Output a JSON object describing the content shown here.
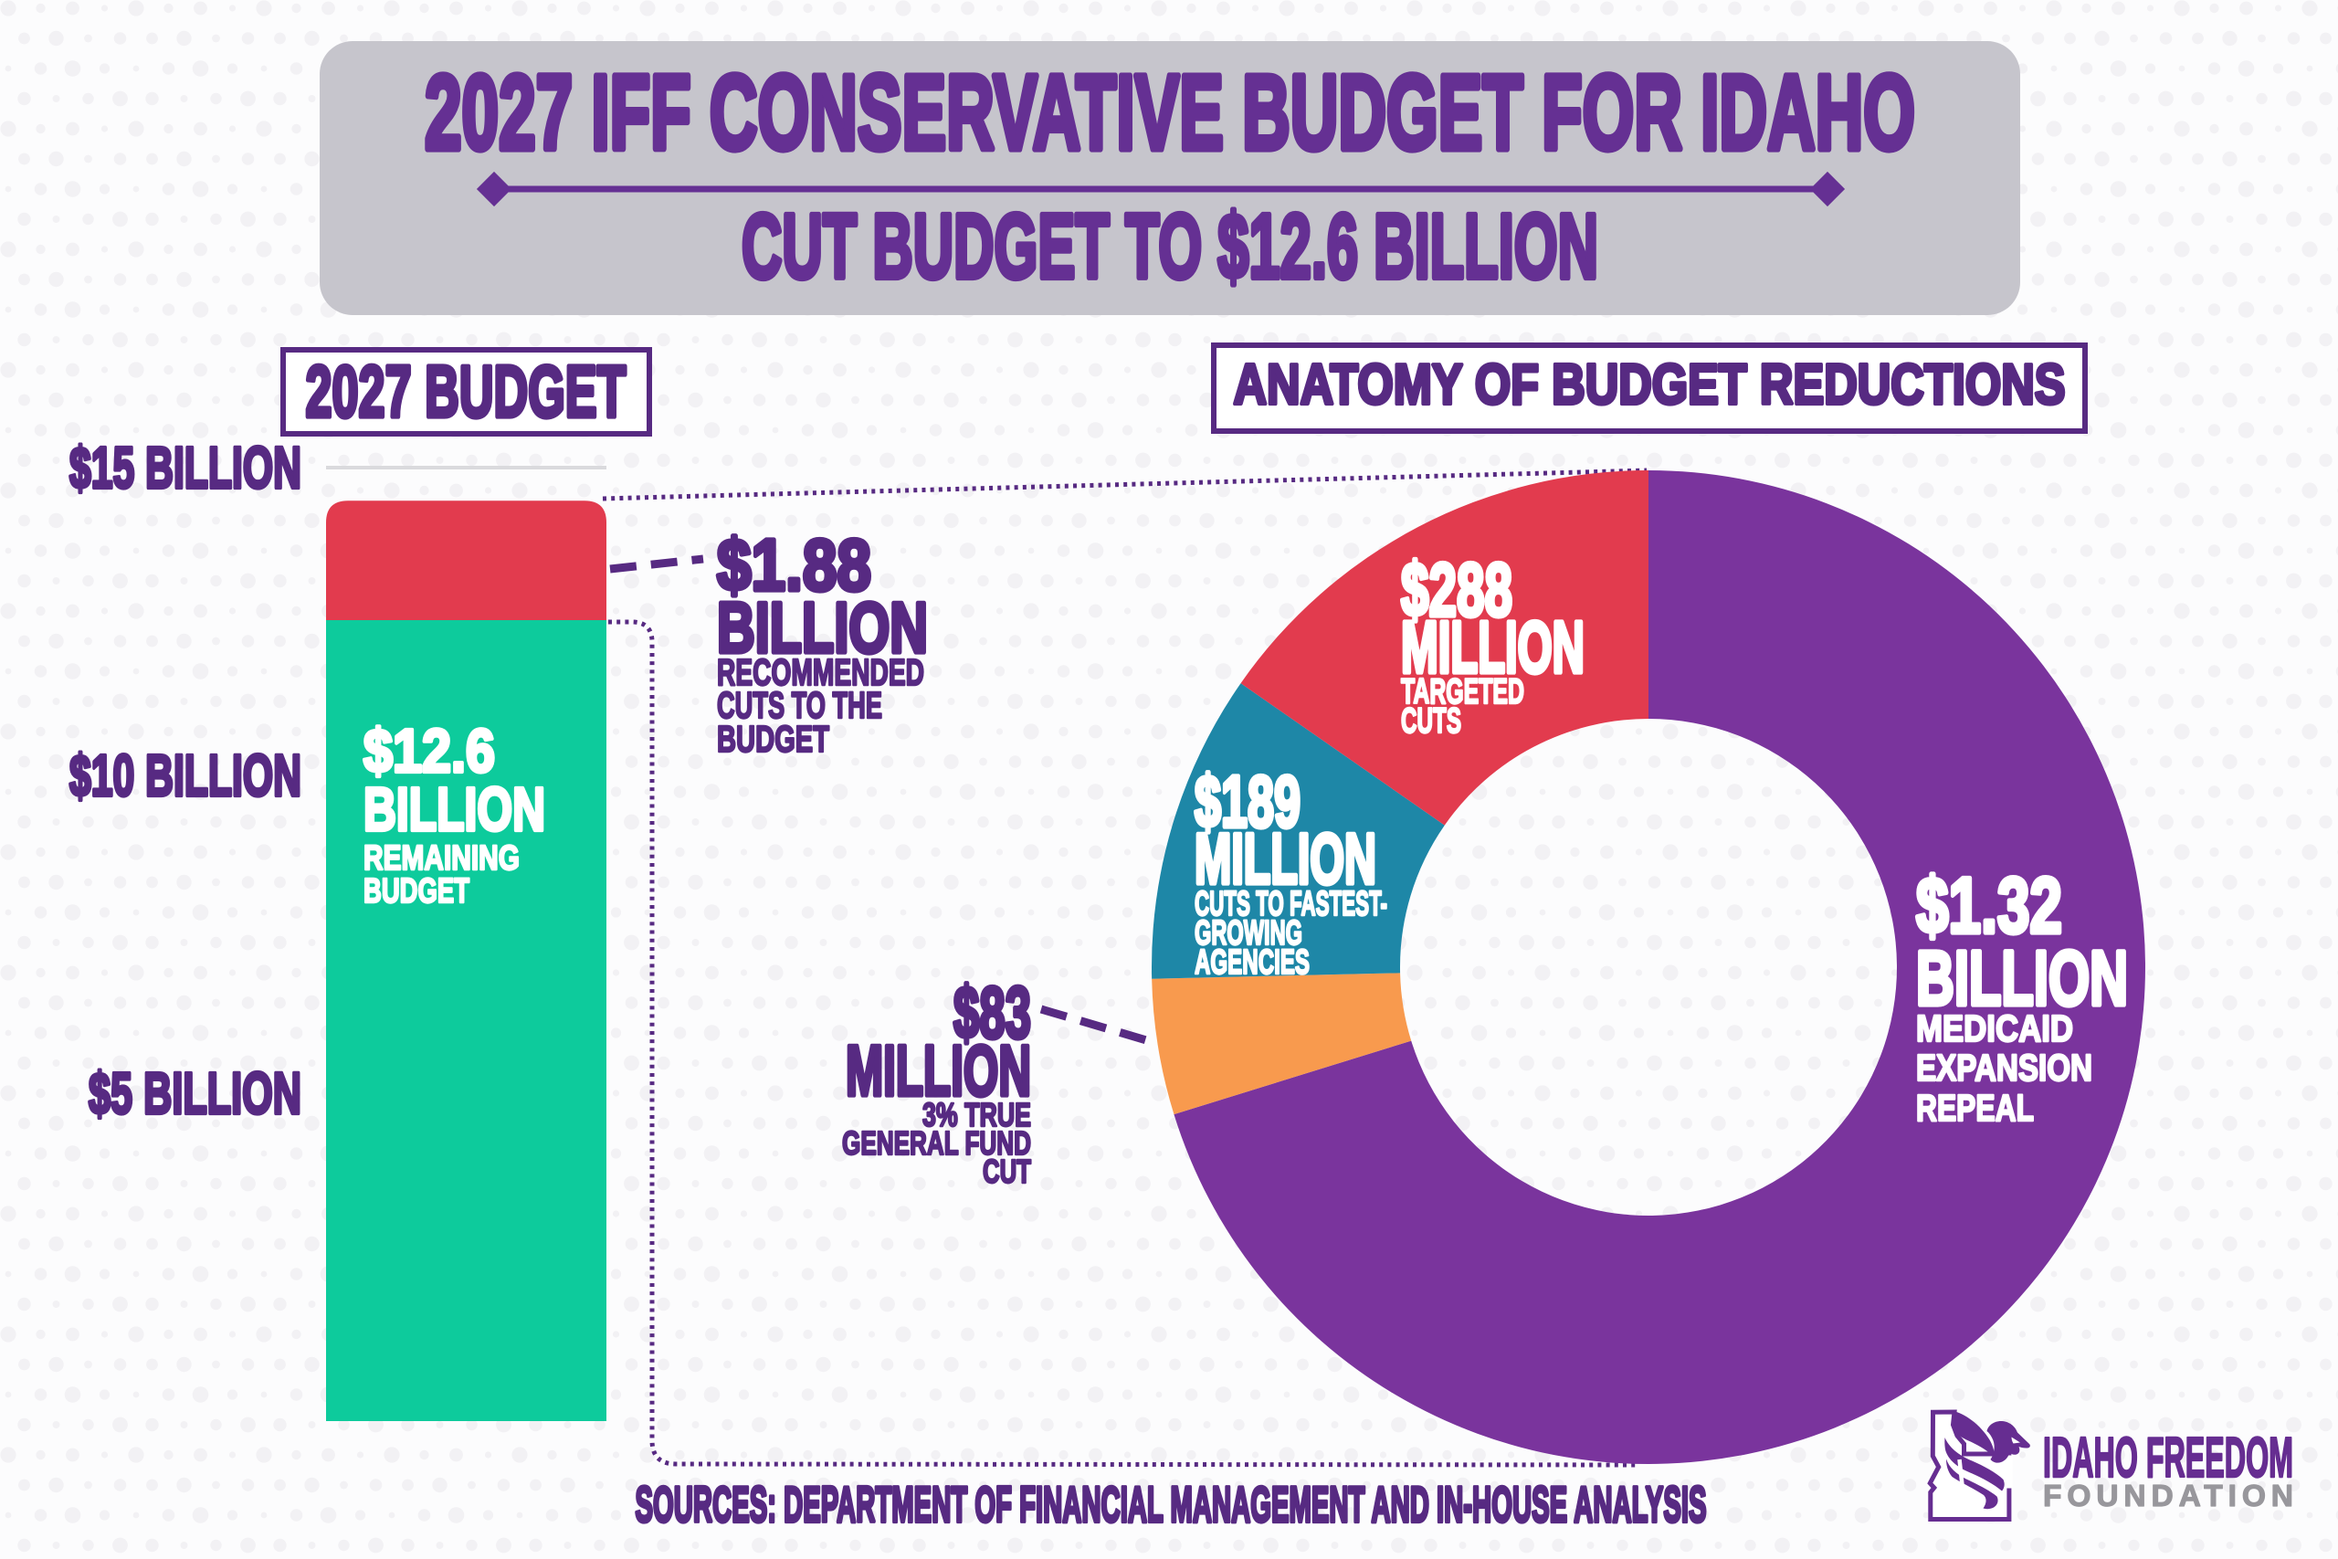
{
  "header": {
    "title": "2027 IFF CONSERVATIVE BUDGET FOR IDAHO",
    "subtitle": "CUT BUDGET TO $12.6 BILLION"
  },
  "bar_chart": {
    "title": "2027 BUDGET",
    "axis_labels": [
      "$15 BILLION",
      "$10 BILLION",
      "$5 BILLION"
    ],
    "bar_label": {
      "amount": "$12.6",
      "unit": "BILLION",
      "desc1": "REMAINING",
      "desc2": "BUDGET"
    }
  },
  "cuts_callout": {
    "amount": "$1.88",
    "unit": "BILLION",
    "desc1": "RECOMMENDED",
    "desc2": "CUTS TO THE",
    "desc3": "BUDGET"
  },
  "donut_chart": {
    "title": "ANATOMY OF BUDGET REDUCTIONS",
    "labels": {
      "targeted": {
        "amount": "$288",
        "unit": "MILLION",
        "desc1": "TARGETED",
        "desc2": "CUTS"
      },
      "fastest": {
        "amount": "$189",
        "unit": "MILLION",
        "desc1": "CUTS TO FASTEST-",
        "desc2": "GROWING",
        "desc3": "AGENCIES"
      },
      "medicaid": {
        "amount": "$1.32",
        "unit": "BILLION",
        "desc1": "MEDICAID",
        "desc2": "EXPANSION",
        "desc3": "REPEAL"
      },
      "generalfund": {
        "amount": "$83",
        "unit": "MILLION",
        "desc1": "3% TRUE",
        "desc2": "GENERAL FUND",
        "desc3": "CUT"
      }
    }
  },
  "sources": "SOURCES: DEPARTMENT OF FINANCIAL MANAGEMENT AND IN-HOUSE ANALYSIS",
  "logo": {
    "name_top": "IDAHO FREEDOM",
    "name_bottom": "FOUNDATION"
  },
  "palette": {
    "header_purple": "#653093",
    "label_purple": "#572a82",
    "donut_purple": "#7a349d",
    "red": "#e23b4e",
    "bar_teal": "#0dcb9c",
    "donut_teal": "#1e87a7",
    "orange": "#f89a4e",
    "banner_gray": "#c6c5cc",
    "logo_purple": "#662d91",
    "logo_gray": "#98979c"
  },
  "chart_data": [
    {
      "type": "bar",
      "title": "2027 BUDGET",
      "categories": [
        "2027 BUDGET"
      ],
      "stacked": true,
      "series": [
        {
          "name": "REMAINING BUDGET",
          "values": [
            12.6
          ],
          "color": "#0dcb9c"
        },
        {
          "name": "RECOMMENDED CUTS TO THE BUDGET",
          "values": [
            1.88
          ],
          "color": "#e23b4e"
        }
      ],
      "ylabel": "billions of dollars",
      "ylim": [
        0,
        15
      ],
      "y_ticks": [
        "$15 BILLION",
        "$10 BILLION",
        "$5 BILLION"
      ],
      "grid": false
    },
    {
      "type": "donut",
      "title": "ANATOMY OF BUDGET REDUCTIONS",
      "start_angle_deg": 0,
      "clockwise": true,
      "slices": [
        {
          "id": "medicaid",
          "label": "MEDICAID EXPANSION REPEAL",
          "amount": "$1.32 BILLION",
          "value_millions": 1320,
          "color": "#7a349d"
        },
        {
          "id": "generalfund",
          "label": "3% TRUE GENERAL FUND CUT",
          "amount": "$83 MILLION",
          "value_millions": 83,
          "color": "#f89a4e"
        },
        {
          "id": "fastest",
          "label": "CUTS TO FASTEST-GROWING AGENCIES",
          "amount": "$189 MILLION",
          "value_millions": 189,
          "color": "#1e87a7"
        },
        {
          "id": "targeted",
          "label": "TARGETED CUTS",
          "amount": "$288 MILLION",
          "value_millions": 288,
          "color": "#e23b4e"
        }
      ]
    }
  ]
}
